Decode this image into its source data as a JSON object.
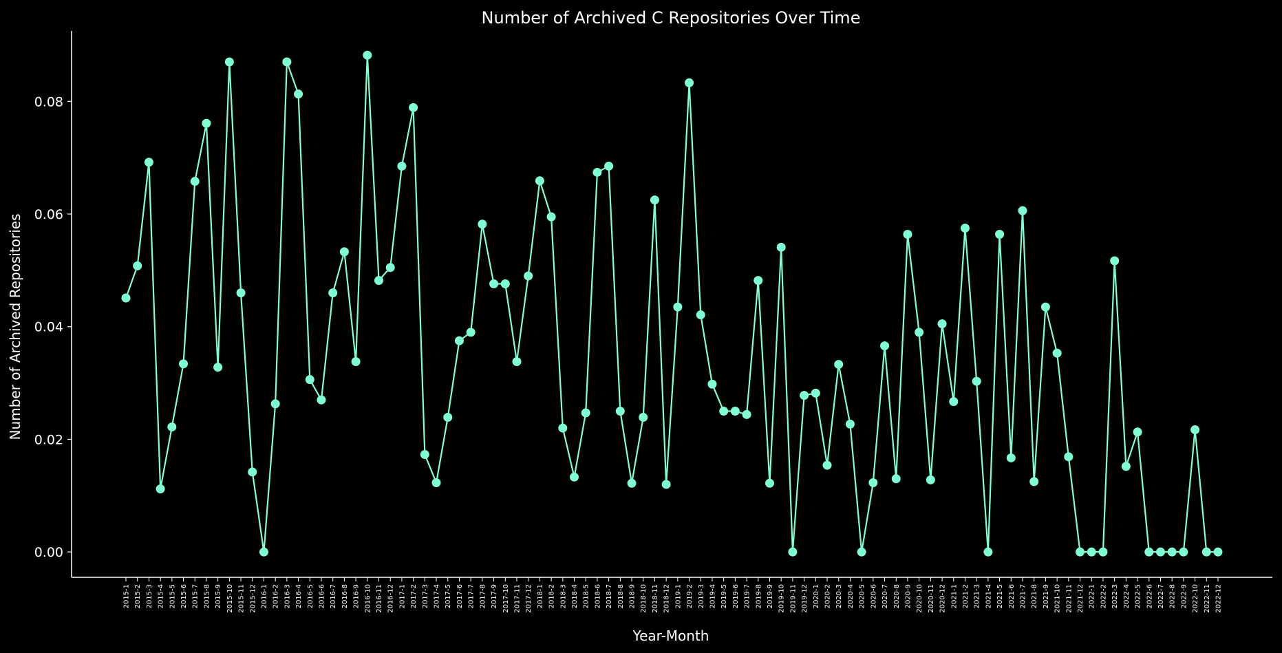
{
  "chart_data": {
    "type": "line",
    "title": "Number of Archived C Repositories Over Time",
    "xlabel": "Year-Month",
    "ylabel": "Number of Archived Repositories",
    "ylim": [
      -0.0045,
      0.0925
    ],
    "yticks": [
      0.0,
      0.02,
      0.04,
      0.06,
      0.08
    ],
    "ytick_labels": [
      "0.00",
      "0.02",
      "0.04",
      "0.06",
      "0.08"
    ],
    "grid": false,
    "colors": {
      "line": "#7fffd4",
      "background": "#000000",
      "axes": "#ffffff"
    },
    "x": [
      "2015-1",
      "2015-2",
      "2015-3",
      "2015-4",
      "2015-5",
      "2015-6",
      "2015-7",
      "2015-8",
      "2015-9",
      "2015-10",
      "2015-11",
      "2015-12",
      "2016-1",
      "2016-2",
      "2016-3",
      "2016-4",
      "2016-5",
      "2016-6",
      "2016-7",
      "2016-8",
      "2016-9",
      "2016-10",
      "2016-11",
      "2016-12",
      "2017-1",
      "2017-2",
      "2017-3",
      "2017-4",
      "2017-5",
      "2017-6",
      "2017-7",
      "2017-8",
      "2017-9",
      "2017-10",
      "2017-11",
      "2017-12",
      "2018-1",
      "2018-2",
      "2018-3",
      "2018-4",
      "2018-5",
      "2018-6",
      "2018-7",
      "2018-8",
      "2018-9",
      "2018-10",
      "2018-11",
      "2018-12",
      "2019-1",
      "2019-2",
      "2019-3",
      "2019-4",
      "2019-5",
      "2019-6",
      "2019-7",
      "2019-8",
      "2019-9",
      "2019-10",
      "2019-11",
      "2019-12",
      "2020-1",
      "2020-2",
      "2020-3",
      "2020-4",
      "2020-5",
      "2020-6",
      "2020-7",
      "2020-8",
      "2020-9",
      "2020-10",
      "2020-11",
      "2020-12",
      "2021-1",
      "2021-2",
      "2021-3",
      "2021-4",
      "2021-5",
      "2021-6",
      "2021-7",
      "2021-8",
      "2021-9",
      "2021-10",
      "2021-11",
      "2021-12",
      "2022-1",
      "2022-2",
      "2022-3",
      "2022-4",
      "2022-5",
      "2022-6",
      "2022-7",
      "2022-8",
      "2022-9",
      "2022-10",
      "2022-11",
      "2022-12"
    ],
    "series": [
      {
        "values": [
          0.0451,
          0.0508,
          0.0692,
          0.0112,
          0.0222,
          0.0334,
          0.0658,
          0.0761,
          0.0328,
          0.087,
          0.046,
          0.0142,
          0.0,
          0.0263,
          0.087,
          0.0813,
          0.0306,
          0.027,
          0.046,
          0.0533,
          0.0338,
          0.0882,
          0.0482,
          0.0505,
          0.0685,
          0.0789,
          0.0173,
          0.0123,
          0.0239,
          0.0375,
          0.039,
          0.0582,
          0.0476,
          0.0476,
          0.0338,
          0.049,
          0.0659,
          0.0595,
          0.022,
          0.0133,
          0.0247,
          0.0674,
          0.0685,
          0.025,
          0.0122,
          0.0239,
          0.0625,
          0.012,
          0.0435,
          0.0833,
          0.0421,
          0.0298,
          0.025,
          0.025,
          0.0244,
          0.0482,
          0.0122,
          0.0541,
          0.0,
          0.0278,
          0.0282,
          0.0154,
          0.0333,
          0.0227,
          0.0,
          0.0123,
          0.0366,
          0.013,
          0.0564,
          0.039,
          0.0128,
          0.0405,
          0.0267,
          0.0575,
          0.0303,
          0.0,
          0.0564,
          0.0167,
          0.0606,
          0.0125,
          0.0435,
          0.0353,
          0.0169,
          0.0,
          0.0,
          0.0,
          0.0517,
          0.0152,
          0.0213,
          0.0,
          0.0,
          0.0,
          0.0,
          0.0217,
          0.0,
          0.0
        ]
      }
    ]
  }
}
